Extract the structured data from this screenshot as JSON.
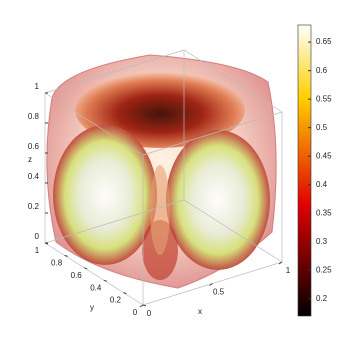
{
  "chart_data": {
    "type": "isosurface",
    "xlabel": "x",
    "ylabel": "y",
    "zlabel": "z",
    "xlim": [
      0,
      1
    ],
    "xticks": [
      0,
      0.5,
      1
    ],
    "ylim": [
      0,
      1
    ],
    "yticks": [
      0,
      0.2,
      0.4,
      0.6,
      0.8,
      1
    ],
    "zlim": [
      0,
      1
    ],
    "zticks": [
      0,
      0.2,
      0.4,
      0.6,
      0.8,
      1
    ],
    "colorbar": {
      "lim": [
        0.17,
        0.68
      ],
      "ticks": [
        0.2,
        0.25,
        0.3,
        0.35,
        0.4,
        0.45,
        0.5,
        0.55,
        0.6,
        0.65
      ],
      "colormap": "hot"
    }
  }
}
